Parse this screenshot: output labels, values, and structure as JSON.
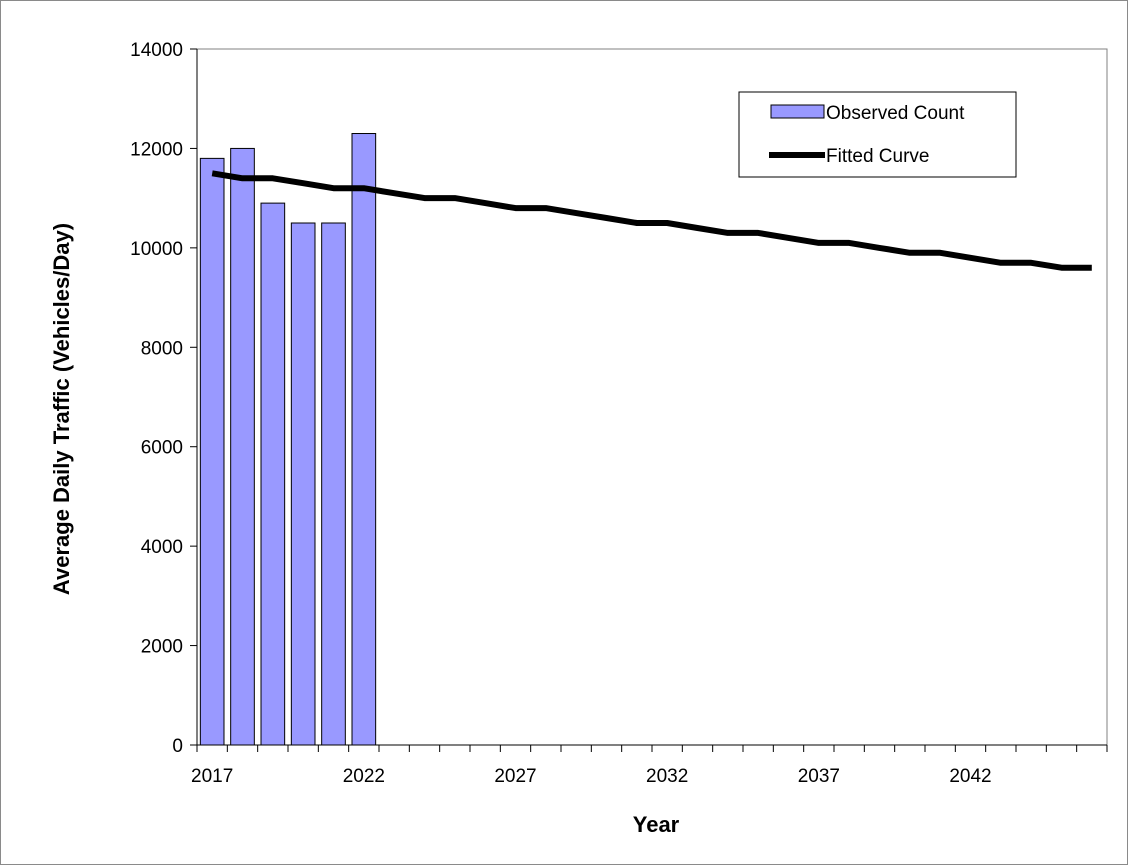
{
  "chart_data": {
    "type": "bar",
    "title": "",
    "xlabel": "Year",
    "ylabel": "Average Daily Traffic (Vehicles/Day)",
    "xlim": [
      2016.5,
      2046.5
    ],
    "ylim": [
      0,
      14000
    ],
    "y_ticks": [
      0,
      2000,
      4000,
      6000,
      8000,
      10000,
      12000,
      14000
    ],
    "x_tick_labels": [
      "2017",
      "2022",
      "2027",
      "2032",
      "2037",
      "2042"
    ],
    "grid": false,
    "legend_position": "top-right",
    "series": [
      {
        "name": "Observed Count",
        "type": "bar",
        "color": "#9999ff",
        "x": [
          2017,
          2018,
          2019,
          2020,
          2021,
          2022
        ],
        "values": [
          11800,
          12000,
          10900,
          10500,
          10500,
          12300
        ]
      },
      {
        "name": "Fitted Curve",
        "type": "line",
        "color": "#000000",
        "x": [
          2017,
          2018,
          2019,
          2020,
          2021,
          2022,
          2023,
          2024,
          2025,
          2026,
          2027,
          2028,
          2029,
          2030,
          2031,
          2032,
          2033,
          2034,
          2035,
          2036,
          2037,
          2038,
          2039,
          2040,
          2041,
          2042,
          2043,
          2044,
          2045,
          2046
        ],
        "values": [
          11500,
          11400,
          11400,
          11300,
          11200,
          11200,
          11100,
          11000,
          11000,
          10900,
          10800,
          10800,
          10700,
          10600,
          10500,
          10500,
          10400,
          10300,
          10300,
          10200,
          10100,
          10100,
          10000,
          9900,
          9900,
          9800,
          9700,
          9700,
          9600,
          9600
        ]
      }
    ]
  }
}
